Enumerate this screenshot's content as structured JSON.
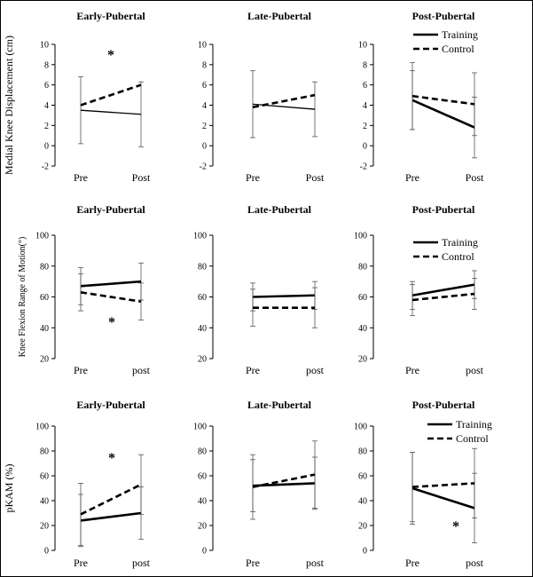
{
  "chart_data": [
    {
      "type": "line",
      "title": "Early-Pubertal",
      "ylabel": "Medial Knee Displacement (cm)",
      "categories": [
        "Pre",
        "Post"
      ],
      "ylim": [
        -2,
        10
      ],
      "yticks": [
        -2,
        0,
        2,
        4,
        6,
        8,
        10
      ],
      "series": [
        {
          "name": "Training",
          "values": [
            3.5,
            3.1
          ],
          "errors": [
            3.3,
            3.2
          ],
          "style": "solid-thin"
        },
        {
          "name": "Control",
          "values": [
            4.0,
            6.0
          ],
          "errors": null,
          "style": "dashed"
        }
      ],
      "annotations": [
        "*"
      ]
    },
    {
      "type": "line",
      "title": "Late-Pubertal",
      "ylabel": "",
      "categories": [
        "Pre",
        "Post"
      ],
      "ylim": [
        -2,
        10
      ],
      "yticks": [
        -2,
        0,
        2,
        4,
        6,
        8,
        10
      ],
      "series": [
        {
          "name": "Training",
          "values": [
            4.1,
            3.6
          ],
          "errors": [
            3.3,
            2.7
          ],
          "style": "solid-thin"
        },
        {
          "name": "Control",
          "values": [
            3.8,
            5.0
          ],
          "errors": null,
          "style": "dashed"
        }
      ],
      "annotations": []
    },
    {
      "type": "line",
      "title": "Post-Pubertal",
      "ylabel": "",
      "categories": [
        "Pre",
        "Post"
      ],
      "ylim": [
        -2,
        10
      ],
      "yticks": [
        -2,
        0,
        2,
        4,
        6,
        8,
        10
      ],
      "series": [
        {
          "name": "Training",
          "values": [
            4.5,
            1.8
          ],
          "errors": [
            2.9,
            3.0
          ],
          "style": "solid"
        },
        {
          "name": "Control",
          "values": [
            4.9,
            4.1
          ],
          "errors": [
            3.3,
            3.1
          ],
          "style": "dashed"
        }
      ],
      "legend": [
        "Training",
        "Control"
      ],
      "annotations": []
    },
    {
      "type": "line",
      "title": "Early-Pubertal",
      "ylabel": "Knee Flexion Range of Motion(°)",
      "categories": [
        "Pre",
        "post"
      ],
      "ylim": [
        20,
        100
      ],
      "yticks": [
        20,
        40,
        60,
        80,
        100
      ],
      "series": [
        {
          "name": "Training",
          "values": [
            67,
            70
          ],
          "errors": [
            12,
            12
          ],
          "style": "solid"
        },
        {
          "name": "Control",
          "values": [
            63,
            57
          ],
          "errors": [
            12,
            12
          ],
          "style": "dashed"
        }
      ],
      "annotations": [
        "*"
      ]
    },
    {
      "type": "line",
      "title": "Late-Pubertal",
      "ylabel": "",
      "categories": [
        "Pre",
        "post"
      ],
      "ylim": [
        20,
        100
      ],
      "yticks": [
        20,
        40,
        60,
        80,
        100
      ],
      "series": [
        {
          "name": "Training",
          "values": [
            60,
            61
          ],
          "errors": [
            9,
            9
          ],
          "style": "solid"
        },
        {
          "name": "Control",
          "values": [
            53,
            53
          ],
          "errors": [
            12,
            13
          ],
          "style": "dashed"
        }
      ],
      "annotations": []
    },
    {
      "type": "line",
      "title": "Post-Pubertal",
      "ylabel": "",
      "categories": [
        "Pre",
        "post"
      ],
      "ylim": [
        20,
        100
      ],
      "yticks": [
        20,
        40,
        60,
        80,
        100
      ],
      "series": [
        {
          "name": "Training",
          "values": [
            61,
            68
          ],
          "errors": [
            9,
            9
          ],
          "style": "solid"
        },
        {
          "name": "Control",
          "values": [
            58,
            62
          ],
          "errors": [
            10,
            10
          ],
          "style": "dashed"
        }
      ],
      "legend": [
        "Training",
        "Control"
      ],
      "annotations": []
    },
    {
      "type": "line",
      "title": "Early-Pubertal",
      "ylabel": "pKAM (%)",
      "categories": [
        "Pre",
        "post"
      ],
      "ylim": [
        0,
        100
      ],
      "yticks": [
        0,
        20,
        40,
        60,
        80,
        100
      ],
      "series": [
        {
          "name": "Training",
          "values": [
            24,
            30
          ],
          "errors": [
            21,
            21
          ],
          "style": "solid"
        },
        {
          "name": "Control",
          "values": [
            29,
            53
          ],
          "errors": [
            25,
            24
          ],
          "style": "dashed"
        }
      ],
      "annotations": [
        "*"
      ]
    },
    {
      "type": "line",
      "title": "Late-Pubertal",
      "ylabel": "",
      "categories": [
        "Pre",
        "post"
      ],
      "ylim": [
        0,
        100
      ],
      "yticks": [
        0,
        20,
        40,
        60,
        80,
        100
      ],
      "series": [
        {
          "name": "Training",
          "values": [
            52,
            54
          ],
          "errors": [
            21,
            21
          ],
          "style": "solid"
        },
        {
          "name": "Control",
          "values": [
            51,
            61
          ],
          "errors": [
            26,
            27
          ],
          "style": "dashed"
        }
      ],
      "annotations": []
    },
    {
      "type": "line",
      "title": "Post-Pubertal",
      "ylabel": "",
      "categories": [
        "Pre",
        "post"
      ],
      "ylim": [
        0,
        100
      ],
      "yticks": [
        0,
        20,
        40,
        60,
        80,
        100
      ],
      "series": [
        {
          "name": "Training",
          "values": [
            50,
            34
          ],
          "errors": [
            29,
            28
          ],
          "style": "solid"
        },
        {
          "name": "Control",
          "values": [
            51,
            54
          ],
          "errors": [
            28,
            28
          ],
          "style": "dashed"
        }
      ],
      "legend": [
        "Training",
        "Control"
      ],
      "annotations": [
        "*"
      ]
    }
  ]
}
